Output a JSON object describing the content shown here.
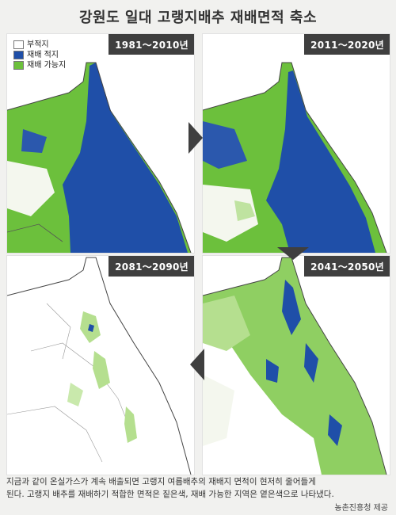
{
  "title": "강원도 일대 고랭지배추 재배면적 축소",
  "legend": {
    "items": [
      {
        "label": "부적지",
        "color": "#ffffff"
      },
      {
        "label": "재배 적지",
        "color": "#1f4fa8"
      },
      {
        "label": "재배 가능지",
        "color": "#6cc03c"
      }
    ]
  },
  "panels": [
    {
      "period": "1981～2010년",
      "level": "high"
    },
    {
      "period": "2011～2020년",
      "level": "medium"
    },
    {
      "period": "2081～2090년",
      "level": "minimal"
    },
    {
      "period": "2041～2050년",
      "level": "low"
    }
  ],
  "caption": {
    "line1": "지금과 같이 온실가스가 계속 배출되면 고랭지 여름배추의 재배지 면적이 현저히 줄어들게",
    "line2": "된다. 고랭지 배추를 재배하기 적합한 면적은 짙은색, 재배 가능한 지역은 옅은색으로 나타냈다."
  },
  "credit": "농촌진흥청 제공",
  "colors": {
    "suitable": "#1f4fa8",
    "possible": "#6cc03c",
    "unsuitable": "#ffffff",
    "sea": "#ffffff"
  }
}
